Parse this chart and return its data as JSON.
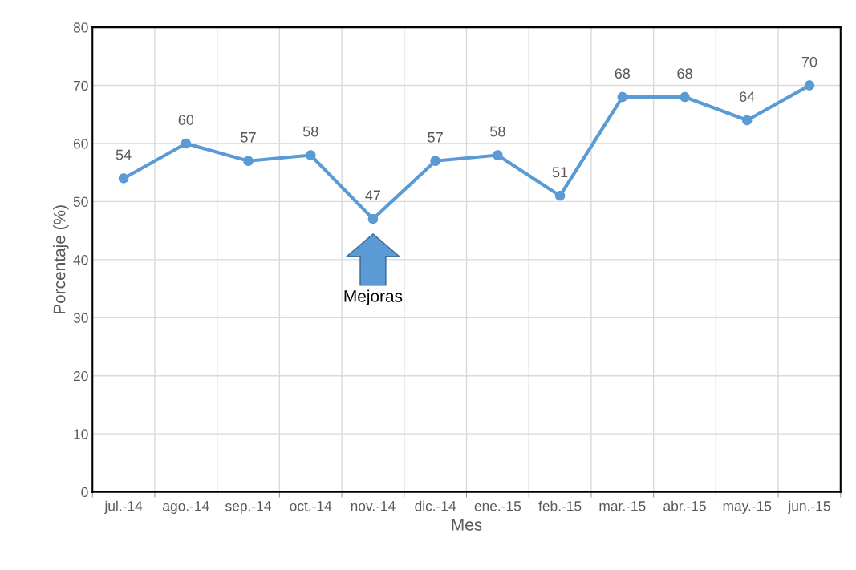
{
  "chart_data": {
    "type": "line",
    "xlabel": "Mes",
    "ylabel": "Porcentaje (%)",
    "categories": [
      "jul.-14",
      "ago.-14",
      "sep.-14",
      "oct.-14",
      "nov.-14",
      "dic.-14",
      "ene.-15",
      "feb.-15",
      "mar.-15",
      "abr.-15",
      "may.-15",
      "jun.-15"
    ],
    "series": [
      {
        "color": "#5b9bd5",
        "values": [
          54,
          60,
          57,
          58,
          47,
          57,
          58,
          51,
          68,
          68,
          64,
          70
        ]
      }
    ],
    "ylim": [
      0,
      80
    ],
    "yticks": [
      0,
      10,
      20,
      30,
      40,
      50,
      60,
      70,
      80
    ],
    "grid": true,
    "legend": false,
    "marker": "circle",
    "line_style": "solid",
    "data_labels": true,
    "annotations": [
      "Mejoras"
    ]
  }
}
